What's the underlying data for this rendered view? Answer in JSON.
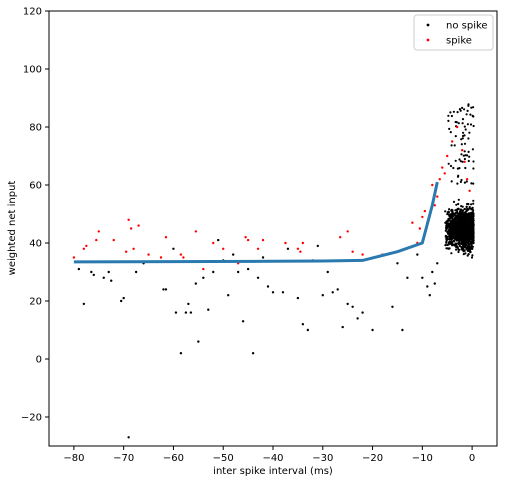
{
  "chart_data": {
    "type": "scatter",
    "title": "",
    "xlabel": "inter spike interval (ms)",
    "ylabel": "weighted net input",
    "xlim": [
      -85,
      5
    ],
    "ylim": [
      -30,
      120
    ],
    "xticks": [
      -80,
      -70,
      -60,
      -50,
      -40,
      -30,
      -20,
      -10,
      0
    ],
    "yticks": [
      -20,
      0,
      20,
      40,
      60,
      80,
      100,
      120
    ],
    "grid": false,
    "legend_position": "top-right",
    "series": [
      {
        "name": "no spike",
        "kind": "scatter",
        "color": "#000000",
        "points": [
          [
            -79,
            31
          ],
          [
            -78,
            19
          ],
          [
            -76.5,
            30
          ],
          [
            -76,
            29
          ],
          [
            -74,
            28
          ],
          [
            -73,
            30
          ],
          [
            -72.5,
            27
          ],
          [
            -70.5,
            20
          ],
          [
            -70,
            21
          ],
          [
            -69,
            -27
          ],
          [
            -67.5,
            30
          ],
          [
            -66,
            33
          ],
          [
            -62,
            24
          ],
          [
            -61.5,
            24
          ],
          [
            -60,
            38
          ],
          [
            -59.5,
            16
          ],
          [
            -58.5,
            2
          ],
          [
            -57.5,
            16
          ],
          [
            -57,
            19
          ],
          [
            -56.5,
            16
          ],
          [
            -55.5,
            26
          ],
          [
            -55,
            6
          ],
          [
            -54,
            28
          ],
          [
            -53,
            17
          ],
          [
            -52,
            30
          ],
          [
            -51,
            41
          ],
          [
            -50,
            34
          ],
          [
            -49,
            22
          ],
          [
            -48,
            36
          ],
          [
            -47,
            30
          ],
          [
            -46,
            13
          ],
          [
            -45,
            31
          ],
          [
            -44,
            2
          ],
          [
            -43,
            28
          ],
          [
            -42,
            35
          ],
          [
            -41,
            25
          ],
          [
            -40,
            23
          ],
          [
            -38,
            23
          ],
          [
            -37,
            38
          ],
          [
            -35,
            21
          ],
          [
            -34,
            12
          ],
          [
            -33,
            10
          ],
          [
            -32,
            34
          ],
          [
            -31,
            39
          ],
          [
            -30,
            22
          ],
          [
            -29,
            30
          ],
          [
            -28,
            23
          ],
          [
            -27,
            24
          ],
          [
            -26,
            11
          ],
          [
            -25,
            19
          ],
          [
            -24,
            18
          ],
          [
            -23,
            14
          ],
          [
            -22,
            16
          ],
          [
            -20,
            10
          ],
          [
            -16,
            18
          ],
          [
            -15,
            33
          ],
          [
            -14,
            10
          ],
          [
            -13,
            28
          ],
          [
            -11,
            36
          ],
          [
            -10,
            28
          ],
          [
            -9,
            25
          ],
          [
            -8.5,
            22
          ],
          [
            -8,
            30
          ],
          [
            -7.5,
            26
          ],
          [
            -7,
            33
          ]
        ]
      },
      {
        "name": "spike",
        "kind": "scatter",
        "color": "#ff0000",
        "points": [
          [
            -80,
            35
          ],
          [
            -78,
            38
          ],
          [
            -77.5,
            39
          ],
          [
            -75.5,
            41
          ],
          [
            -75,
            44
          ],
          [
            -72,
            41
          ],
          [
            -69.5,
            37
          ],
          [
            -69,
            48
          ],
          [
            -68.5,
            45
          ],
          [
            -68,
            38
          ],
          [
            -67,
            46
          ],
          [
            -65,
            36
          ],
          [
            -62.5,
            35
          ],
          [
            -61.5,
            42
          ],
          [
            -58.5,
            36
          ],
          [
            -58,
            35
          ],
          [
            -55.5,
            44
          ],
          [
            -54,
            31
          ],
          [
            -52,
            40
          ],
          [
            -50,
            38
          ],
          [
            -47,
            33
          ],
          [
            -45.5,
            42
          ],
          [
            -45,
            41
          ],
          [
            -43,
            38
          ],
          [
            -42,
            41
          ],
          [
            -37.5,
            40
          ],
          [
            -35,
            38
          ],
          [
            -34.5,
            37
          ],
          [
            -34,
            40
          ],
          [
            -26.5,
            42
          ],
          [
            -25,
            44
          ],
          [
            -24,
            37
          ],
          [
            -22,
            36
          ],
          [
            -18,
            36
          ],
          [
            -12,
            47
          ],
          [
            -11,
            40
          ],
          [
            -10.5,
            45
          ],
          [
            -10,
            49
          ],
          [
            -9.5,
            51
          ],
          [
            -9,
            47
          ],
          [
            -8,
            60
          ],
          [
            -7.5,
            53
          ],
          [
            -7,
            56
          ],
          [
            -6.5,
            62
          ],
          [
            -6,
            66
          ],
          [
            -5.5,
            64
          ],
          [
            -5,
            70
          ],
          [
            -4,
            75
          ],
          [
            -3,
            80
          ],
          [
            -2,
            72
          ],
          [
            -1.5,
            68
          ],
          [
            -1,
            62
          ],
          [
            -0.5,
            58
          ]
        ]
      },
      {
        "name": "",
        "kind": "line",
        "color": "#2a7ab0",
        "points": [
          [
            -80,
            33.5
          ],
          [
            -60,
            33.6
          ],
          [
            -40,
            33.7
          ],
          [
            -30,
            33.8
          ],
          [
            -22,
            34
          ],
          [
            -15,
            37
          ],
          [
            -10,
            40
          ],
          [
            -8,
            53
          ],
          [
            -7,
            61
          ]
        ]
      }
    ],
    "dense_cluster": {
      "series": "no spike",
      "x_range": [
        -5.5,
        0.3
      ],
      "y_range": [
        24,
        88
      ],
      "y_center": 45,
      "approx_points": 1600
    }
  }
}
